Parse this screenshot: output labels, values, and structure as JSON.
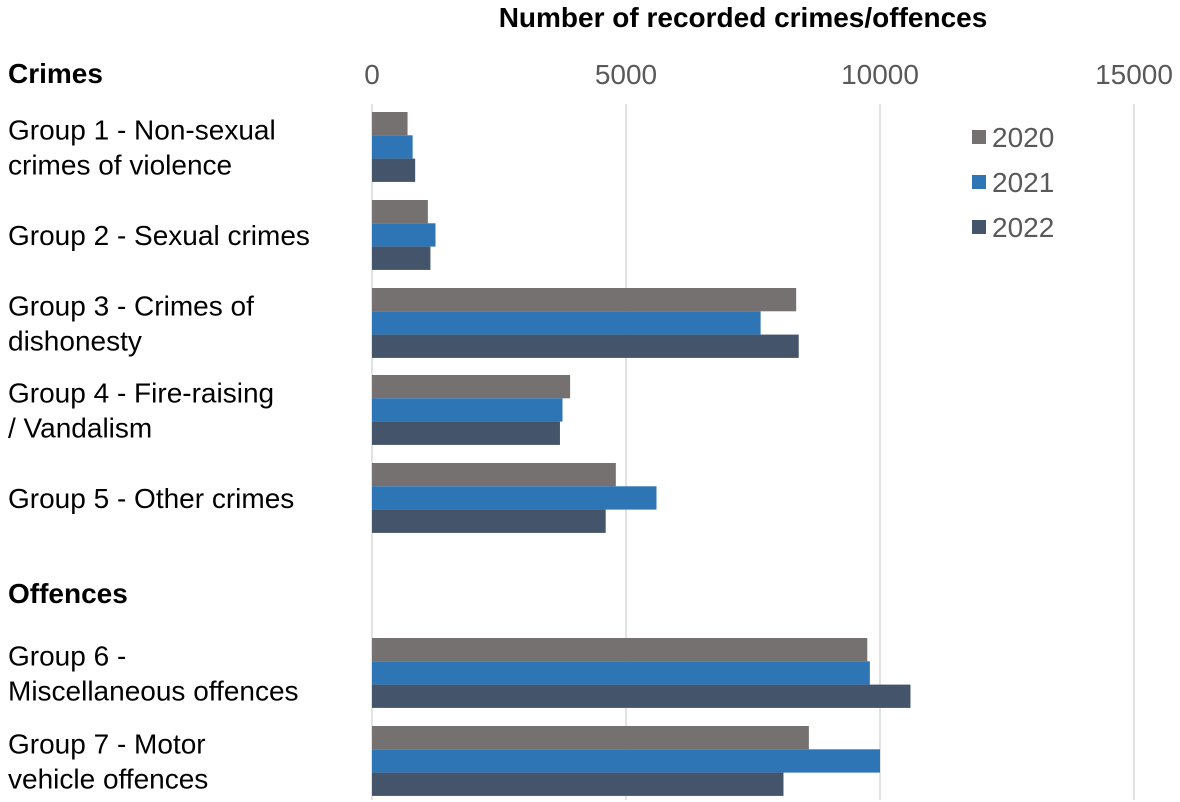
{
  "chart_data": {
    "type": "bar",
    "orientation": "horizontal",
    "title": "Number of recorded crimes/offences",
    "xlim": [
      0,
      15000
    ],
    "ticks": [
      "0",
      "5000",
      "10000",
      "15000"
    ],
    "tick_values": [
      0,
      5000,
      10000,
      15000
    ],
    "grid": true,
    "legend_position": "top-right",
    "sections": [
      {
        "label": "Crimes",
        "categories": [
          0,
          1,
          2,
          3,
          4
        ]
      },
      {
        "label": "Offences",
        "categories": [
          5,
          6
        ]
      }
    ],
    "categories": [
      [
        "Group 1 - Non-sexual",
        "crimes of violence"
      ],
      [
        "Group 2 - Sexual crimes"
      ],
      [
        "Group 3 - Crimes of",
        "dishonesty"
      ],
      [
        "Group 4 - Fire-raising",
        "/ Vandalism"
      ],
      [
        "Group 5 - Other crimes"
      ],
      [
        "Group 6 -",
        "Miscellaneous offences"
      ],
      [
        "Group 7 - Motor",
        "vehicle offences"
      ]
    ],
    "series": [
      {
        "name": "2020",
        "color": "#767171",
        "values": [
          700,
          1100,
          8350,
          3900,
          4800,
          9750,
          8600
        ]
      },
      {
        "name": "2021",
        "color": "#2e75b6",
        "values": [
          800,
          1250,
          7650,
          3750,
          5600,
          9800,
          10000
        ]
      },
      {
        "name": "2022",
        "color": "#44546a",
        "values": [
          850,
          1150,
          8400,
          3700,
          4600,
          10600,
          8100
        ]
      }
    ]
  }
}
